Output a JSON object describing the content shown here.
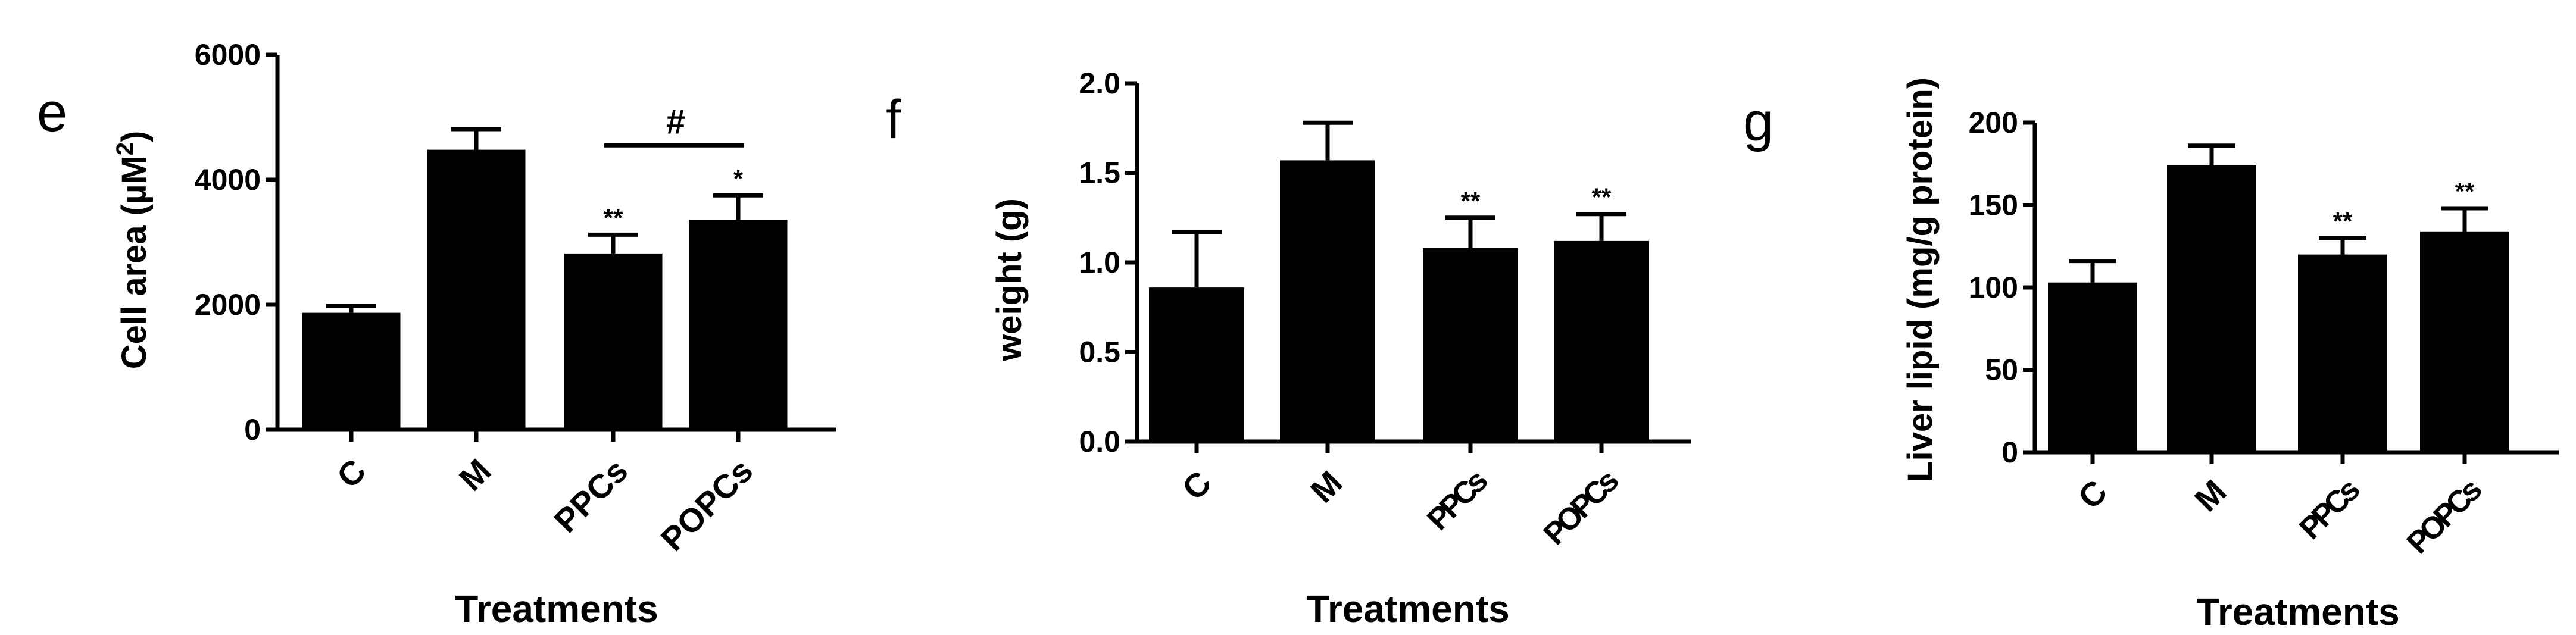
{
  "chart_data": [
    {
      "type": "bar",
      "panel": "e",
      "categories": [
        "C",
        "M",
        "PPCs",
        "POPCs"
      ],
      "values": [
        1870,
        4480,
        2820,
        3360
      ],
      "errors": [
        110,
        330,
        300,
        390
      ],
      "significance": [
        "",
        "",
        "**",
        "*"
      ],
      "bracket": {
        "from": "PPCs",
        "to": "POPCs",
        "label": "#"
      },
      "title": "",
      "xlabel": "Treatments",
      "ylabel_main": "Cell area (µM",
      "ylabel_sup": "2",
      "ylabel_end": ")",
      "ylim": [
        0,
        6000
      ],
      "yticks": [
        "0",
        "2000",
        "4000",
        "6000"
      ],
      "grid": false
    },
    {
      "type": "bar",
      "panel": "f",
      "categories": [
        "C",
        "M",
        "PPCs",
        "POPCs"
      ],
      "values": [
        0.86,
        1.57,
        1.08,
        1.12
      ],
      "errors": [
        0.31,
        0.21,
        0.17,
        0.15
      ],
      "significance": [
        "",
        "",
        "**",
        "**"
      ],
      "title": "",
      "xlabel": "Treatments",
      "ylabel": "weight (g)",
      "ylim": [
        0,
        2.0
      ],
      "yticks": [
        "0.0",
        "0.5",
        "1.0",
        "1.5",
        "2.0"
      ],
      "grid": false
    },
    {
      "type": "bar",
      "panel": "g",
      "categories": [
        "C",
        "M",
        "PPCs",
        "POPCs"
      ],
      "values": [
        103,
        174,
        120,
        134
      ],
      "errors": [
        13,
        12,
        10,
        14
      ],
      "significance": [
        "",
        "",
        "**",
        "**"
      ],
      "title": "",
      "xlabel": "Treatments",
      "ylabel": "Liver lipid (mg/g protein)",
      "ylim": [
        0,
        200
      ],
      "yticks": [
        "0",
        "50",
        "100",
        "150",
        "200"
      ],
      "grid": false
    }
  ]
}
